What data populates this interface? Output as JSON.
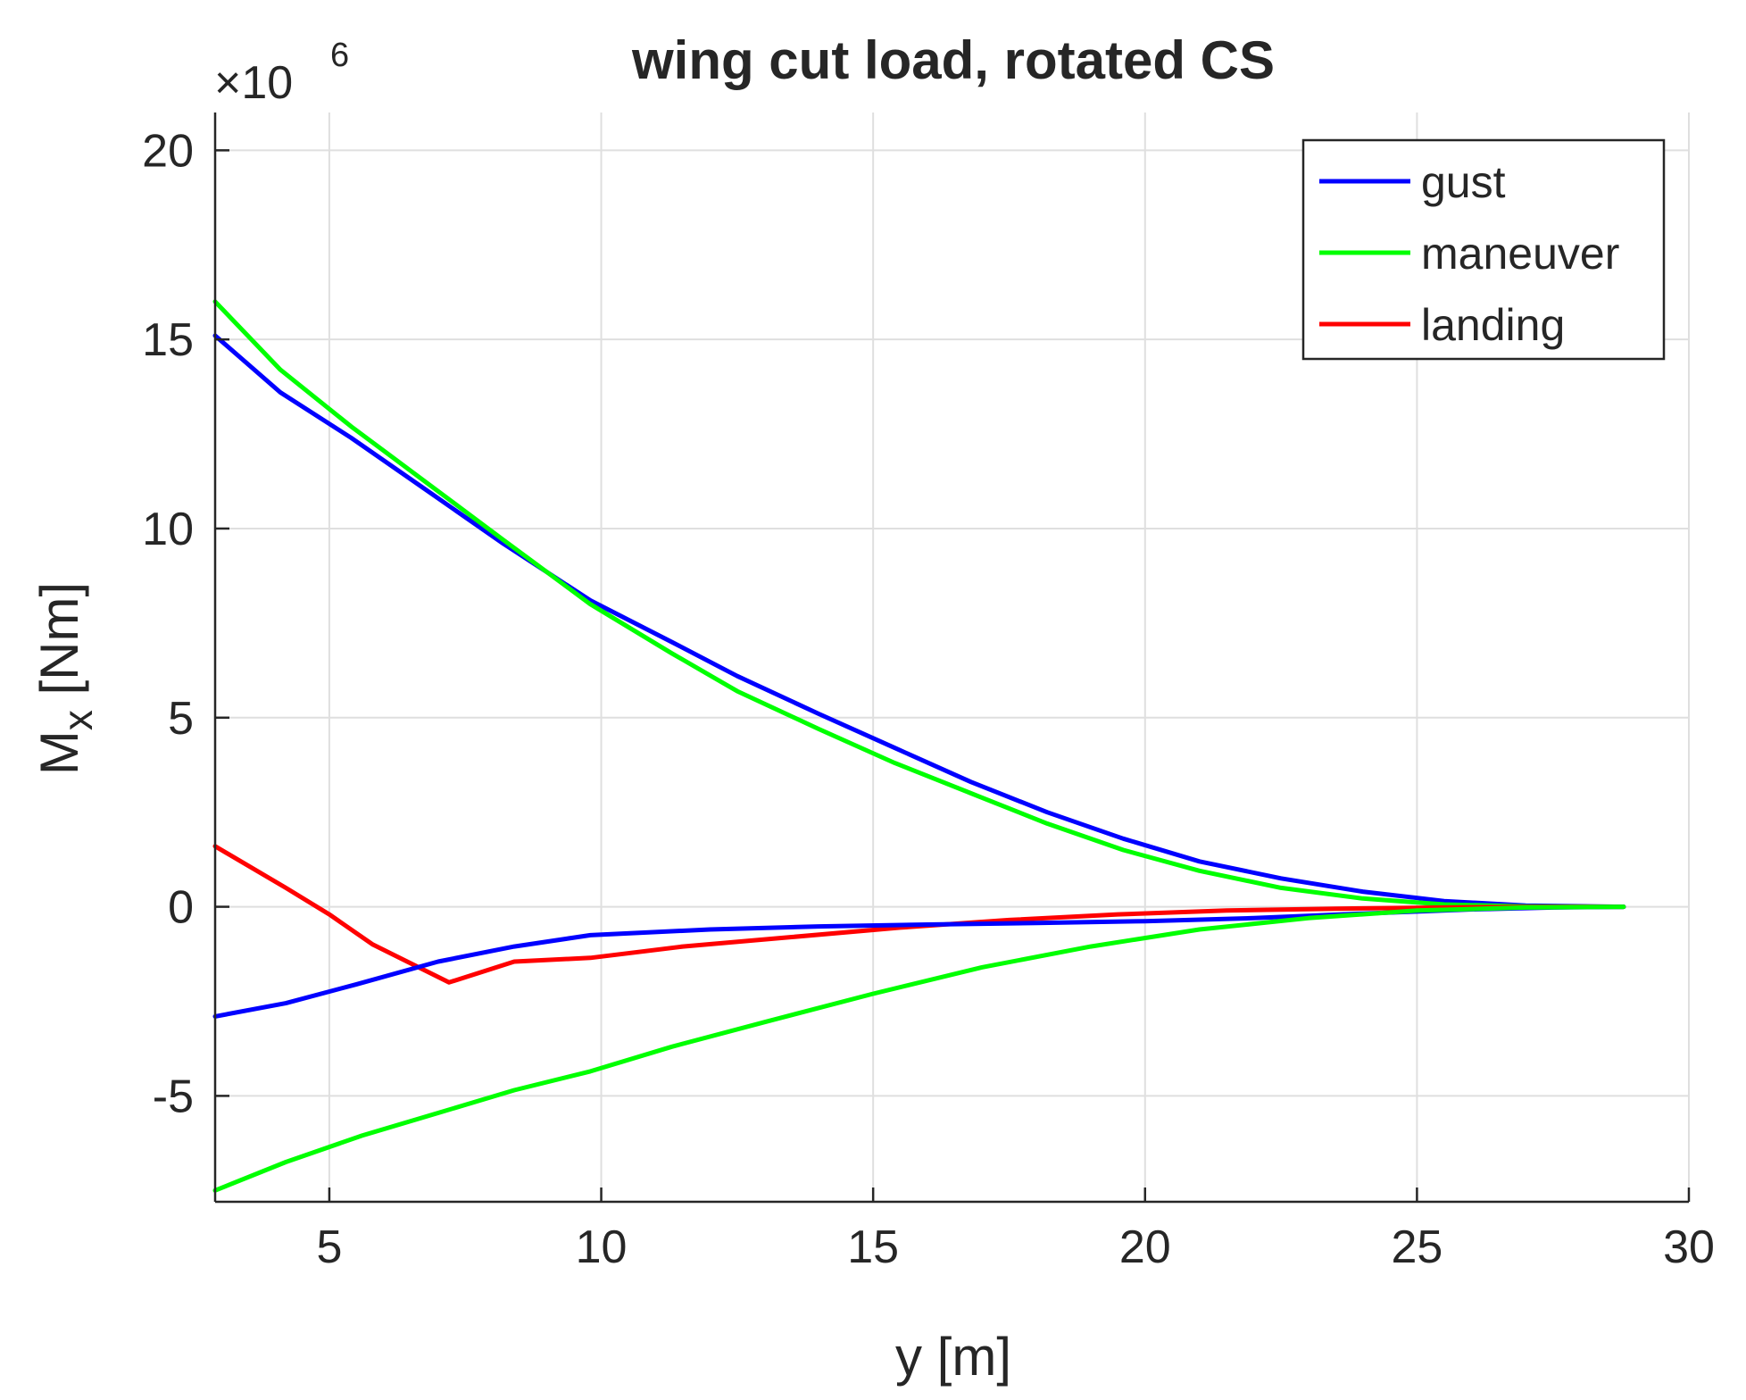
{
  "chart_data": {
    "type": "line",
    "title": "wing cut load, rotated CS",
    "xlabel": "y [m]",
    "ylabel_main": "M",
    "ylabel_sub": "x",
    "ylabel_unit": " [Nm]",
    "multiplier_base": "×10",
    "multiplier_exp": "6",
    "xlim": [
      2.9,
      30
    ],
    "ylim": [
      -7.8,
      21
    ],
    "x_ticks": [
      5,
      10,
      15,
      20,
      25,
      30
    ],
    "y_ticks": [
      -5,
      0,
      5,
      10,
      15,
      20
    ],
    "grid": true,
    "legend_location": "top-right",
    "series": [
      {
        "name": "gust",
        "legend": true,
        "color": "#0000ff",
        "x": [
          2.9,
          4.1,
          5.4,
          6.8,
          8.2,
          9.8,
          11.3,
          12.5,
          14.0,
          15.4,
          16.8,
          18.2,
          19.6,
          21.0,
          22.5,
          24.0,
          25.5,
          27.0,
          28.8
        ],
        "y": [
          15.1,
          13.6,
          12.4,
          11.0,
          9.6,
          8.1,
          7.0,
          6.1,
          5.1,
          4.2,
          3.3,
          2.5,
          1.8,
          1.2,
          0.75,
          0.4,
          0.15,
          0.03,
          0.0
        ]
      },
      {
        "name": "maneuver",
        "legend": true,
        "color": "#00ff00",
        "x": [
          2.9,
          4.1,
          5.4,
          6.8,
          8.2,
          9.8,
          11.3,
          12.5,
          14.0,
          15.4,
          16.8,
          18.2,
          19.6,
          21.0,
          22.5,
          24.0,
          25.5,
          27.0,
          28.8
        ],
        "y": [
          16.0,
          14.2,
          12.7,
          11.2,
          9.7,
          8.0,
          6.7,
          5.7,
          4.7,
          3.8,
          3.0,
          2.2,
          1.5,
          0.95,
          0.5,
          0.22,
          0.06,
          0.01,
          0.0
        ]
      },
      {
        "name": "landing",
        "legend": true,
        "color": "#ff0000",
        "x": [
          2.9,
          4.2,
          5.0,
          5.8,
          7.2,
          8.4,
          9.8,
          11.5,
          13.5,
          15.5,
          17.5,
          19.5,
          21.5,
          23.5,
          25.5,
          27.5,
          28.8
        ],
        "y": [
          1.6,
          0.5,
          -0.2,
          -1.0,
          -2.0,
          -1.45,
          -1.35,
          -1.05,
          -0.8,
          -0.55,
          -0.35,
          -0.2,
          -0.1,
          -0.05,
          -0.02,
          0.0,
          0.0
        ]
      },
      {
        "name": "gust (lower envelope)",
        "legend": false,
        "color": "#0000ff",
        "x": [
          2.9,
          4.2,
          5.5,
          7.0,
          8.4,
          9.8,
          12.0,
          14.0,
          16.0,
          18.0,
          20.0,
          22.0,
          24.0,
          26.0,
          27.5,
          28.8
        ],
        "y": [
          -2.9,
          -2.55,
          -2.05,
          -1.45,
          -1.05,
          -0.75,
          -0.6,
          -0.52,
          -0.47,
          -0.43,
          -0.38,
          -0.3,
          -0.18,
          -0.07,
          -0.02,
          0.0
        ]
      },
      {
        "name": "maneuver (lower envelope)",
        "legend": false,
        "color": "#00ff00",
        "x": [
          2.9,
          4.2,
          5.6,
          7.0,
          8.4,
          9.8,
          11.3,
          13.0,
          15.0,
          17.0,
          19.0,
          21.0,
          23.0,
          25.0,
          27.0,
          28.8
        ],
        "y": [
          -7.5,
          -6.75,
          -6.05,
          -5.45,
          -4.85,
          -4.35,
          -3.7,
          -3.05,
          -2.3,
          -1.6,
          -1.05,
          -0.6,
          -0.3,
          -0.1,
          -0.02,
          0.0
        ]
      }
    ]
  }
}
